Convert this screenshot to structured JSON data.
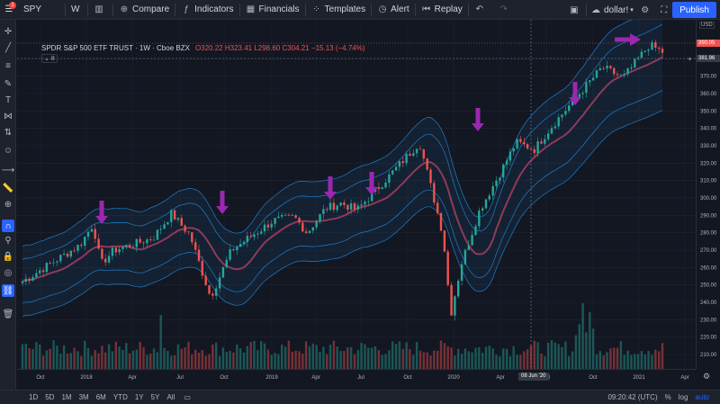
{
  "topbar": {
    "symbol": "SPY",
    "interval": "W",
    "compare_label": "Compare",
    "indicators_label": "Indicators",
    "financials_label": "Financials",
    "templates_label": "Templates",
    "alert_label": "Alert",
    "replay_label": "Replay",
    "account_label": "dollar!",
    "publish_label": "Publish",
    "notification_count": "1"
  },
  "legend": {
    "title": "SPDR S&P 500 ETF TRUST · 1W · Cboe BZX",
    "ohlc": "O320.22 H323.41 L298.60 C304.21 −15.13 (−4.74%)",
    "indicator_badge": "8"
  },
  "price_scale": {
    "currency": "USD",
    "ticks": [
      "380.00",
      "370.00",
      "360.00",
      "350.00",
      "340.00",
      "330.00",
      "320.00",
      "310.00",
      "300.00",
      "290.00",
      "280.00",
      "270.00",
      "260.00",
      "250.00",
      "240.00",
      "230.00",
      "220.00",
      "210.00"
    ],
    "last_price_label": "390.05",
    "crosshair_price_label": "381.96"
  },
  "time_axis": {
    "labels": [
      "Oct",
      "2018",
      "Apr",
      "Jul",
      "Oct",
      "2019",
      "Apr",
      "Jul",
      "Oct",
      "2020",
      "Apr",
      "Jul",
      "Oct",
      "2021",
      "Apr"
    ],
    "crosshair_label": "08 Jun '20"
  },
  "bottombar": {
    "ranges": [
      "1D",
      "5D",
      "1M",
      "3M",
      "6M",
      "YTD",
      "1Y",
      "5Y",
      "All"
    ],
    "time": "09:20:42 (UTC)",
    "percent_label": "%",
    "log_label": "log",
    "auto_label": "auto"
  },
  "colors": {
    "up": "#26a69a",
    "down": "#ef5350",
    "band": "#2196f3",
    "mid": "#8e3a59",
    "arrow": "#9c27b0",
    "accent": "#2962ff"
  }
}
